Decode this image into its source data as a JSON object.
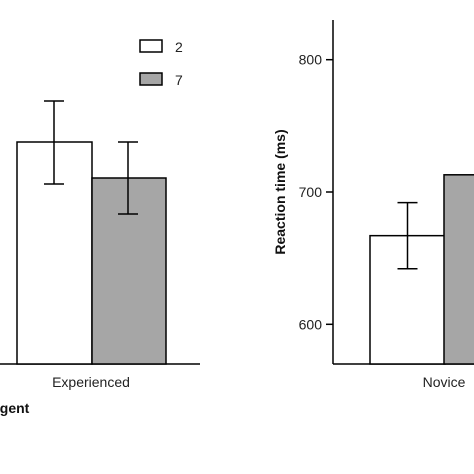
{
  "chart_data": [
    {
      "type": "bar",
      "panel": "left",
      "categories": [
        "Experienced"
      ],
      "series": [
        {
          "name": "2",
          "values": [
            null
          ],
          "error": [
            null
          ],
          "color": "#ffffff"
        },
        {
          "name": "7",
          "values": [
            null
          ],
          "error": [
            null
          ],
          "color": "#a6a6a6"
        }
      ],
      "xlabel": "agent",
      "legend": {
        "position": "top-right",
        "entries": [
          "2",
          "7"
        ]
      }
    },
    {
      "type": "bar",
      "panel": "right",
      "categories": [
        "Novice"
      ],
      "series": [
        {
          "name": "2",
          "values": [
            667
          ],
          "error": [
            25
          ],
          "color": "#ffffff"
        },
        {
          "name": "7",
          "values": [
            713
          ],
          "error": [
            null
          ],
          "color": "#a6a6a6"
        }
      ],
      "ylabel": "Reaction time (ms)",
      "yticks": [
        600,
        700,
        800
      ],
      "ylim": [
        570,
        830
      ],
      "grid": false
    }
  ]
}
